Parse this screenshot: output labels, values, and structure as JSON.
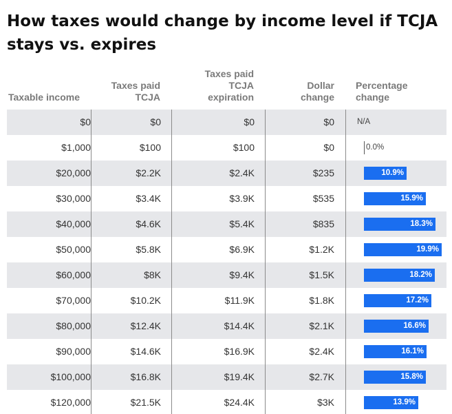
{
  "title": "How taxes would change by income level if TCJA stays vs. expires",
  "headers": {
    "income": "Taxable income",
    "tcja": "Taxes paid TCJA",
    "expiration": "Taxes paid TCJA expiration",
    "dollar": "Dollar change",
    "percent": "Percentage change"
  },
  "colors": {
    "bar": "#1a6ef0",
    "shade": "#e6e7ea"
  },
  "chart_data": {
    "type": "table",
    "columns": [
      "Taxable income",
      "Taxes paid TCJA",
      "Taxes paid TCJA expiration",
      "Dollar change",
      "Percentage change"
    ],
    "rows": [
      {
        "income": "$0",
        "tcja": "$0",
        "expiration": "$0",
        "dollar": "$0",
        "pct_label": "N/A",
        "pct": null
      },
      {
        "income": "$1,000",
        "tcja": "$100",
        "expiration": "$100",
        "dollar": "$0",
        "pct_label": "0.0%",
        "pct": 0.0
      },
      {
        "income": "$20,000",
        "tcja": "$2.2K",
        "expiration": "$2.4K",
        "dollar": "$235",
        "pct_label": "10.9%",
        "pct": 10.9
      },
      {
        "income": "$30,000",
        "tcja": "$3.4K",
        "expiration": "$3.9K",
        "dollar": "$535",
        "pct_label": "15.9%",
        "pct": 15.9
      },
      {
        "income": "$40,000",
        "tcja": "$4.6K",
        "expiration": "$5.4K",
        "dollar": "$835",
        "pct_label": "18.3%",
        "pct": 18.3
      },
      {
        "income": "$50,000",
        "tcja": "$5.8K",
        "expiration": "$6.9K",
        "dollar": "$1.2K",
        "pct_label": "19.9%",
        "pct": 19.9
      },
      {
        "income": "$60,000",
        "tcja": "$8K",
        "expiration": "$9.4K",
        "dollar": "$1.5K",
        "pct_label": "18.2%",
        "pct": 18.2
      },
      {
        "income": "$70,000",
        "tcja": "$10.2K",
        "expiration": "$11.9K",
        "dollar": "$1.8K",
        "pct_label": "17.2%",
        "pct": 17.2
      },
      {
        "income": "$80,000",
        "tcja": "$12.4K",
        "expiration": "$14.4K",
        "dollar": "$2.1K",
        "pct_label": "16.6%",
        "pct": 16.6
      },
      {
        "income": "$90,000",
        "tcja": "$14.6K",
        "expiration": "$16.9K",
        "dollar": "$2.4K",
        "pct_label": "16.1%",
        "pct": 16.1
      },
      {
        "income": "$100,000",
        "tcja": "$16.8K",
        "expiration": "$19.4K",
        "dollar": "$2.7K",
        "pct_label": "15.8%",
        "pct": 15.8
      },
      {
        "income": "$120,000",
        "tcja": "$21.5K",
        "expiration": "$24.4K",
        "dollar": "$3K",
        "pct_label": "13.9%",
        "pct": 13.9
      }
    ],
    "pct_max": 19.9
  }
}
